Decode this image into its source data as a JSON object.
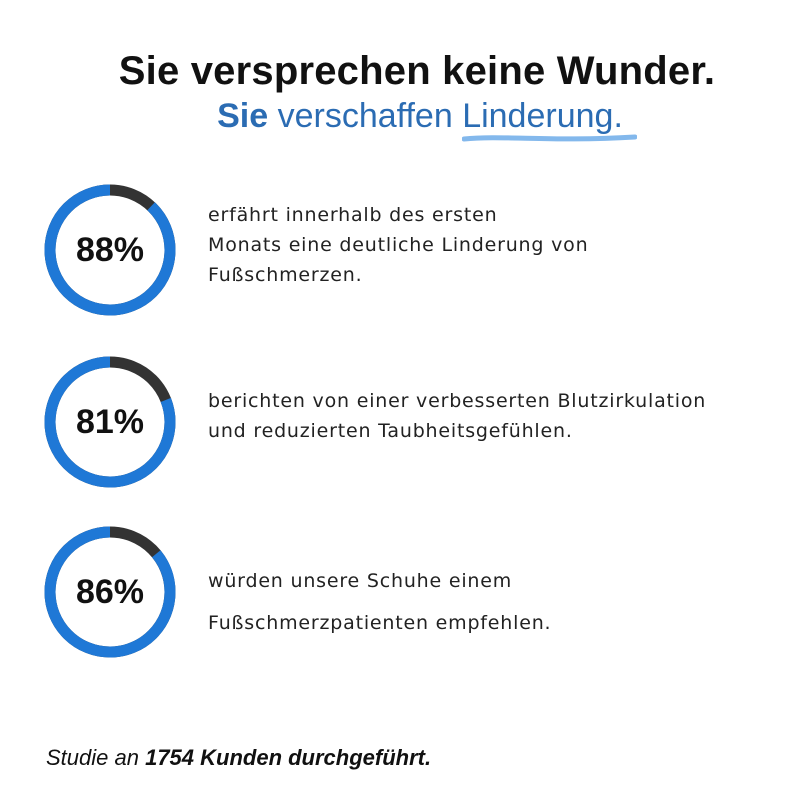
{
  "headline": {
    "line1": "Sie versprechen keine Wunder.",
    "line2_strong": "Sie",
    "line2_mid": " verschaffen ",
    "line2_underlined": "Linderung",
    "line2_end": "."
  },
  "stats": [
    {
      "percent_label": "88%",
      "value": 88,
      "lines": [
        "erfährt innerhalb des ersten",
        "Monats eine deutliche Linderung von",
        "Fußschmerzen."
      ]
    },
    {
      "percent_label": "81%",
      "value": 81,
      "lines": [
        "berichten von einer verbesserten Blutzirkulation",
        "und reduzierten Taubheitsgefühlen."
      ]
    },
    {
      "percent_label": "86%",
      "value": 86,
      "lines": [
        "würden unsere Schuhe einem",
        "Fußschmerzpatienten empfehlen."
      ]
    }
  ],
  "footer": {
    "prefix": "Studie an ",
    "bold": "1754 Kunden durchgeführt."
  },
  "colors": {
    "ring_fill": "#1f78d6",
    "ring_track": "#333333",
    "accent": "#2b6cb3"
  }
}
